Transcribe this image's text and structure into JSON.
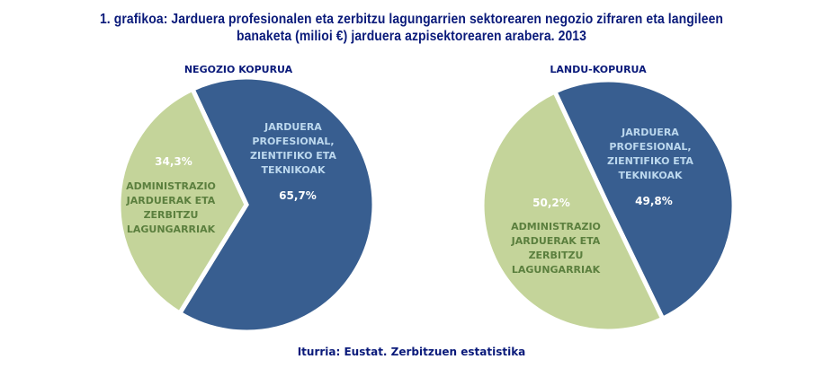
{
  "title": {
    "line1": "1. grafikoa: Jarduera profesionalen eta zerbitzu lagungarrien sektorearen negozio zifraren eta langileen",
    "line2": "banaketa (milioi €)  jarduera azpisektorearen arabera. 2013"
  },
  "source": "Iturria: Eustat. Zerbitzuen estatistika",
  "colors": {
    "blue": "#385e90",
    "green": "#c4d49a",
    "title": "#0a1a7a",
    "blue_label": "#bcd8ee",
    "green_label": "#5b7f3e"
  },
  "left": {
    "title": "NEGOZIO KOPURUA",
    "blue_label": [
      "JARDUERA",
      "PROFESIONAL,",
      "ZIENTIFIKO ETA",
      "TEKNIKOAK"
    ],
    "blue_pct": "65,7%",
    "green_label": [
      "ADMINISTRAZIO",
      "JARDUERAK ETA",
      "ZERBITZU",
      "LAGUNGARRIAK"
    ],
    "green_pct": "34,3%"
  },
  "right": {
    "title": "LANDU-KOPURUA",
    "blue_label": [
      "JARDUERA",
      "PROFESIONAL,",
      "ZIENTIFIKO ETA",
      "TEKNIKOAK"
    ],
    "blue_pct": "49,8%",
    "green_label": [
      "ADMINISTRAZIO",
      "JARDUERAK ETA",
      "ZERBITZU",
      "LAGUNGARRIAK"
    ],
    "green_pct": "50,2%"
  },
  "chart_data": [
    {
      "type": "pie",
      "title": "NEGOZIO KOPURUA",
      "categories": [
        "JARDUERA PROFESIONAL, ZIENTIFIKO ETA TEKNIKOAK",
        "ADMINISTRAZIO JARDUERAK ETA ZERBITZU LAGUNGARRIAK"
      ],
      "values": [
        65.7,
        34.3
      ],
      "colors": [
        "#385e90",
        "#c4d49a"
      ]
    },
    {
      "type": "pie",
      "title": "LANDU-KOPURUA",
      "categories": [
        "JARDUERA PROFESIONAL, ZIENTIFIKO ETA TEKNIKOAK",
        "ADMINISTRAZIO JARDUERAK ETA ZERBITZU LAGUNGARRIAK"
      ],
      "values": [
        49.8,
        50.2
      ],
      "colors": [
        "#385e90",
        "#c4d49a"
      ]
    }
  ]
}
